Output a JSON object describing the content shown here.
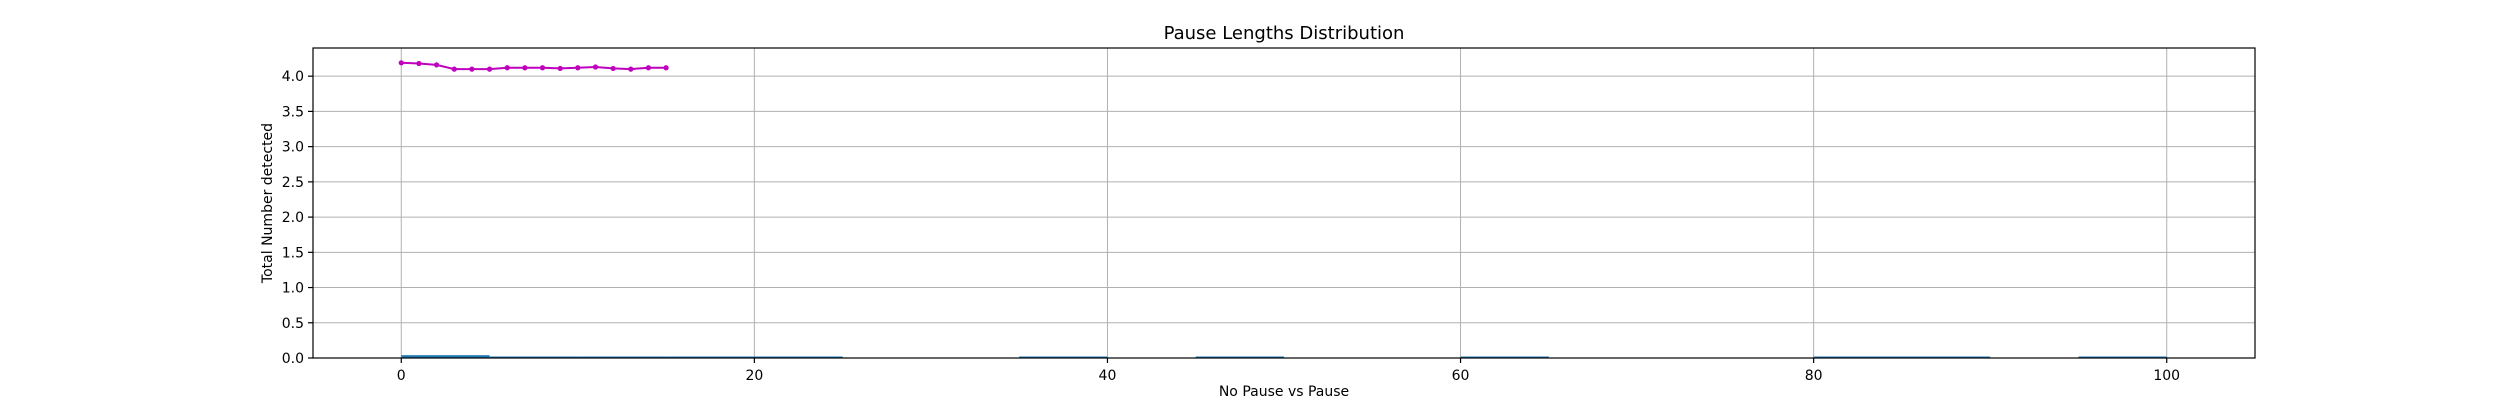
{
  "chart_data": {
    "type": "line",
    "title": "Pause Lengths Distribution",
    "xlabel": "No Pause vs Pause",
    "ylabel": "Total Number detected",
    "xlim": [
      -5,
      105
    ],
    "ylim": [
      0,
      4.4
    ],
    "xticks": [
      0,
      20,
      40,
      60,
      80,
      100
    ],
    "yticks": [
      0.0,
      0.5,
      1.0,
      1.5,
      2.0,
      2.5,
      3.0,
      3.5,
      4.0
    ],
    "xtick_labels": [
      "0",
      "20",
      "40",
      "60",
      "80",
      "100"
    ],
    "ytick_labels": [
      "0.0",
      "0.5",
      "1.0",
      "1.5",
      "2.0",
      "2.5",
      "3.0",
      "3.5",
      "4.0"
    ],
    "grid": true,
    "series": [
      {
        "color": "#bf00bf",
        "marker": "dot",
        "x": [
          0,
          1,
          2,
          3,
          4,
          5,
          6,
          7,
          8,
          9,
          10,
          11,
          12,
          13,
          14,
          15
        ],
        "y": [
          4.19,
          4.18,
          4.16,
          4.1,
          4.1,
          4.1,
          4.12,
          4.12,
          4.12,
          4.11,
          4.12,
          4.13,
          4.11,
          4.1,
          4.12,
          4.12
        ]
      }
    ],
    "bars": {
      "color": "#1f77b4",
      "items": [
        {
          "x0": 0,
          "x1": 5,
          "value": 0.04
        },
        {
          "x0": 5,
          "x1": 10,
          "value": 0.01
        },
        {
          "x0": 10,
          "x1": 15,
          "value": 0.02
        },
        {
          "x0": 15,
          "x1": 25,
          "value": 0.01
        },
        {
          "x0": 35,
          "x1": 40,
          "value": 0.01
        },
        {
          "x0": 45,
          "x1": 50,
          "value": 0.01
        },
        {
          "x0": 60,
          "x1": 65,
          "value": 0.01
        },
        {
          "x0": 80,
          "x1": 90,
          "value": 0.01
        },
        {
          "x0": 95,
          "x1": 100,
          "value": 0.01
        }
      ]
    }
  }
}
